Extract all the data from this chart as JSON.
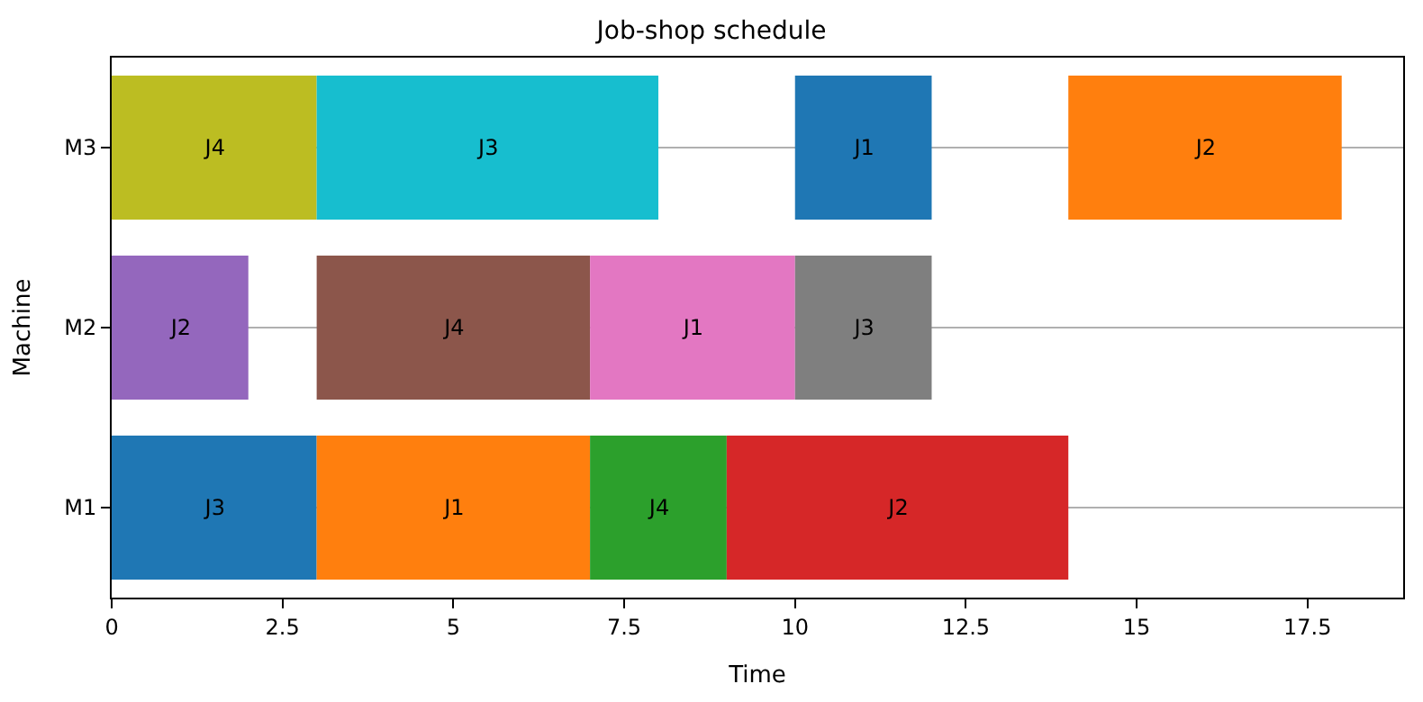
{
  "chart_data": {
    "type": "bar",
    "orientation": "horizontal",
    "title": "Job-shop schedule",
    "xlabel": "Time",
    "ylabel": "Machine",
    "categories": [
      "M3",
      "M2",
      "M1"
    ],
    "series": [
      {
        "values": [
          3,
          2,
          3
        ],
        "base": [
          0,
          0,
          0
        ],
        "colors": [
          "#bcbd22",
          "#9467bd",
          "#1f77b4"
        ],
        "value_labels": [
          "J4",
          "J2",
          "J3"
        ]
      },
      {
        "values": [
          5,
          4,
          4
        ],
        "base": [
          3,
          3,
          3
        ],
        "colors": [
          "#17becf",
          "#8c564b",
          "#ff7f0e"
        ],
        "value_labels": [
          "J3",
          "J4",
          "J1"
        ]
      },
      {
        "values": [
          2,
          3,
          2
        ],
        "base": [
          10,
          7,
          7
        ],
        "colors": [
          "#1f77b4",
          "#e377c2",
          "#2ca02c"
        ],
        "value_labels": [
          "J1",
          "J1",
          "J4"
        ]
      },
      {
        "values": [
          4,
          2,
          5
        ],
        "base": [
          14,
          10,
          9
        ],
        "colors": [
          "#ff7f0e",
          "#7f7f7f",
          "#d62728"
        ],
        "value_labels": [
          "J2",
          "J3",
          "J2"
        ]
      }
    ],
    "xlim": [
      0,
      18.9
    ],
    "xticks": [
      0,
      2.5,
      5,
      7.5,
      10,
      12.5,
      15,
      17.5
    ],
    "grid": "y"
  }
}
